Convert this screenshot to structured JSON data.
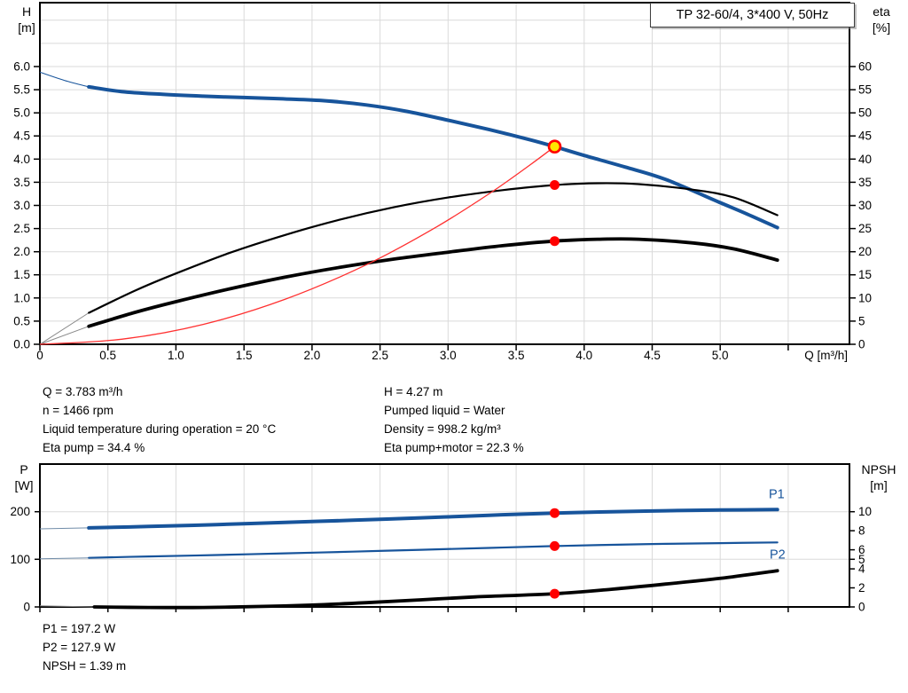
{
  "title_box": {
    "label": "TP 32-60/4, 3*400 V, 50Hz"
  },
  "colors": {
    "curve_blue": "#17549B",
    "curve_black": "#000000",
    "curve_red": "#FF3030",
    "marker_red": "#FF0000",
    "duty_fill": "#FFE800",
    "grid": "#DADADA",
    "axis": "#000000",
    "lead_gray": "#888888",
    "lead_blue": "#708CA8",
    "text": "#000000"
  },
  "info_blocks": {
    "top_left": [
      "Q = 3.783 m³/h",
      "n = 1466 rpm",
      "Liquid temperature during operation = 20 °C",
      "Eta pump = 34.4 %"
    ],
    "top_right": [
      "H = 4.27 m",
      "Pumped liquid = Water",
      "Density = 998.2 kg/m³",
      "Eta pump+motor = 22.3 %"
    ],
    "bottom": [
      "P1 = 197.2 W",
      "P2 = 127.9 W",
      "NPSH = 1.39 m"
    ]
  },
  "chart_data": [
    {
      "id": "hq",
      "type": "line",
      "title": "TP 32-60/4, 3*400 V, 50Hz",
      "x_axis": {
        "label": "Q [m³/h]",
        "min": 0,
        "max": 5.95,
        "ticks": [
          {
            "v": 0,
            "label": "0"
          },
          {
            "v": 0.5,
            "label": "0.5"
          },
          {
            "v": 1,
            "label": "1.0"
          },
          {
            "v": 1.5,
            "label": "1.5"
          },
          {
            "v": 2,
            "label": "2.0"
          },
          {
            "v": 2.5,
            "label": "2.5"
          },
          {
            "v": 3,
            "label": "3.0"
          },
          {
            "v": 3.5,
            "label": "3.5"
          },
          {
            "v": 4,
            "label": "4.0"
          },
          {
            "v": 4.5,
            "label": "4.5"
          },
          {
            "v": 5,
            "label": "5.0"
          },
          {
            "v": 5.5,
            "label": ""
          }
        ],
        "grid": [
          0.5,
          1,
          1.5,
          2,
          2.5,
          3,
          3.5,
          4,
          4.5,
          5,
          5.5
        ]
      },
      "y_left": {
        "label_lines": [
          "H",
          "[m]"
        ],
        "min": 0,
        "max": 7.38,
        "ticks": [
          {
            "v": 0,
            "label": "0.0"
          },
          {
            "v": 0.5,
            "label": "0.5"
          },
          {
            "v": 1,
            "label": "1.0"
          },
          {
            "v": 1.5,
            "label": "1.5"
          },
          {
            "v": 2,
            "label": "2.0"
          },
          {
            "v": 2.5,
            "label": "2.5"
          },
          {
            "v": 3,
            "label": "3.0"
          },
          {
            "v": 3.5,
            "label": "3.5"
          },
          {
            "v": 4,
            "label": "4.0"
          },
          {
            "v": 4.5,
            "label": "4.5"
          },
          {
            "v": 5,
            "label": "5.0"
          },
          {
            "v": 5.5,
            "label": "5.5"
          },
          {
            "v": 6,
            "label": "6.0"
          }
        ],
        "grid": [
          0.5,
          1,
          1.5,
          2,
          2.5,
          3,
          3.5,
          4,
          4.5,
          5,
          5.5,
          6,
          6.5,
          7
        ]
      },
      "y_right": {
        "label_lines": [
          "eta",
          "[%]"
        ],
        "min": 0,
        "max": 73.8,
        "ticks": [
          {
            "v": 0,
            "label": "0"
          },
          {
            "v": 5,
            "label": "5"
          },
          {
            "v": 10,
            "label": "10"
          },
          {
            "v": 15,
            "label": "15"
          },
          {
            "v": 20,
            "label": "20"
          },
          {
            "v": 25,
            "label": "25"
          },
          {
            "v": 30,
            "label": "30"
          },
          {
            "v": 35,
            "label": "35"
          },
          {
            "v": 40,
            "label": "40"
          },
          {
            "v": 45,
            "label": "45"
          },
          {
            "v": 50,
            "label": "50"
          },
          {
            "v": 55,
            "label": "55"
          },
          {
            "v": 60,
            "label": "60"
          }
        ]
      },
      "series": [
        {
          "id": "pump_curve",
          "name": "H-Q pump curve",
          "axis": "left",
          "color": "#17549B",
          "width": 4,
          "thin_to": 0.36,
          "lead_color": "#17549B",
          "points": [
            [
              0,
              5.88
            ],
            [
              0.18,
              5.7
            ],
            [
              0.36,
              5.56
            ],
            [
              0.6,
              5.46
            ],
            [
              0.9,
              5.4
            ],
            [
              1.2,
              5.36
            ],
            [
              1.5,
              5.33
            ],
            [
              1.8,
              5.3
            ],
            [
              2.1,
              5.26
            ],
            [
              2.4,
              5.17
            ],
            [
              2.7,
              5.03
            ],
            [
              3.0,
              4.84
            ],
            [
              3.3,
              4.64
            ],
            [
              3.6,
              4.42
            ],
            [
              3.783,
              4.27
            ],
            [
              4.0,
              4.08
            ],
            [
              4.3,
              3.83
            ],
            [
              4.6,
              3.56
            ],
            [
              5.0,
              3.06
            ],
            [
              5.2,
              2.81
            ],
            [
              5.42,
              2.52
            ]
          ]
        },
        {
          "id": "eta_pump",
          "name": "Eta pump",
          "axis": "right",
          "color": "#000000",
          "width": 2.2,
          "thin_to": 0.36,
          "lead_color": "#888888",
          "points": [
            [
              0,
              0
            ],
            [
              0.36,
              6.8
            ],
            [
              0.7,
              11.6
            ],
            [
              1.0,
              15.3
            ],
            [
              1.4,
              19.8
            ],
            [
              1.8,
              23.6
            ],
            [
              2.2,
              26.9
            ],
            [
              2.6,
              29.6
            ],
            [
              3.0,
              31.7
            ],
            [
              3.4,
              33.3
            ],
            [
              3.783,
              34.4
            ],
            [
              4.1,
              34.8
            ],
            [
              4.4,
              34.6
            ],
            [
              4.8,
              33.4
            ],
            [
              5.1,
              31.7
            ],
            [
              5.42,
              27.9
            ]
          ]
        },
        {
          "id": "eta_pump_motor",
          "name": "Eta pump+motor",
          "axis": "right",
          "color": "#000000",
          "width": 3.8,
          "thin_to": 0.36,
          "lead_color": "#888888",
          "points": [
            [
              0,
              0
            ],
            [
              0.36,
              3.9
            ],
            [
              0.7,
              6.9
            ],
            [
              1.0,
              9.2
            ],
            [
              1.4,
              12.0
            ],
            [
              1.8,
              14.5
            ],
            [
              2.2,
              16.6
            ],
            [
              2.6,
              18.4
            ],
            [
              3.0,
              19.9
            ],
            [
              3.4,
              21.3
            ],
            [
              3.783,
              22.3
            ],
            [
              4.1,
              22.7
            ],
            [
              4.4,
              22.7
            ],
            [
              4.8,
              21.9
            ],
            [
              5.1,
              20.6
            ],
            [
              5.42,
              18.2
            ]
          ]
        },
        {
          "id": "system_curve",
          "name": "System curve",
          "axis": "left",
          "color": "#FF3030",
          "width": 1.3,
          "points": [
            [
              0,
              0
            ],
            [
              0.6,
              0.11
            ],
            [
              1.2,
              0.43
            ],
            [
              1.8,
              0.97
            ],
            [
              2.4,
              1.72
            ],
            [
              2.9,
              2.51
            ],
            [
              3.3,
              3.25
            ],
            [
              3.6,
              3.87
            ],
            [
              3.783,
              4.27
            ]
          ]
        }
      ],
      "markers": [
        {
          "x": 3.783,
          "y": 34.4,
          "axis": "right",
          "style": "dot",
          "name": "eta-pump-operating-dot"
        },
        {
          "x": 3.783,
          "y": 22.3,
          "axis": "right",
          "style": "dot",
          "name": "eta-pump-motor-operating-dot"
        },
        {
          "x": 3.783,
          "y": 4.27,
          "axis": "left",
          "style": "duty",
          "name": "duty-point-marker"
        }
      ]
    },
    {
      "id": "pn",
      "type": "line",
      "title": "",
      "x_axis": {
        "label": "",
        "min": 0,
        "max": 5.95,
        "ticks": [
          {
            "v": 0,
            "label": ""
          },
          {
            "v": 0.5,
            "label": ""
          },
          {
            "v": 1,
            "label": ""
          },
          {
            "v": 1.5,
            "label": ""
          },
          {
            "v": 2,
            "label": ""
          },
          {
            "v": 2.5,
            "label": ""
          },
          {
            "v": 3,
            "label": ""
          },
          {
            "v": 3.5,
            "label": ""
          },
          {
            "v": 4,
            "label": ""
          },
          {
            "v": 4.5,
            "label": ""
          },
          {
            "v": 5,
            "label": ""
          },
          {
            "v": 5.5,
            "label": ""
          }
        ],
        "grid": [
          0.5,
          1,
          1.5,
          2,
          2.5,
          3,
          3.5,
          4,
          4.5,
          5,
          5.5
        ]
      },
      "y_left": {
        "label_lines": [
          "P",
          "[W]"
        ],
        "min": 0,
        "max": 300,
        "ticks": [
          {
            "v": 0,
            "label": "0"
          },
          {
            "v": 100,
            "label": "100"
          },
          {
            "v": 200,
            "label": "200"
          }
        ],
        "grid": [
          100,
          200
        ]
      },
      "y_right": {
        "label_lines": [
          "NPSH",
          "[m]"
        ],
        "min": 0,
        "max": 15,
        "ticks": [
          {
            "v": 0,
            "label": "0"
          },
          {
            "v": 2,
            "label": "2"
          },
          {
            "v": 4,
            "label": "4"
          },
          {
            "v": 5,
            "label": "5"
          },
          {
            "v": 6,
            "label": "6"
          },
          {
            "v": 8,
            "label": "8"
          },
          {
            "v": 10,
            "label": "10"
          }
        ]
      },
      "series": [
        {
          "id": "p1",
          "name": "P1 input power",
          "label": "P1",
          "label_dx": 8,
          "label_dy": -13,
          "axis": "left",
          "color": "#17549B",
          "width": 4,
          "thin_to": 0.36,
          "lead_color": "#708CA8",
          "points": [
            [
              0,
              164
            ],
            [
              0.36,
              166
            ],
            [
              0.8,
              169
            ],
            [
              1.3,
              173
            ],
            [
              1.8,
              177.5
            ],
            [
              2.3,
              182
            ],
            [
              2.8,
              187
            ],
            [
              3.3,
              192.5
            ],
            [
              3.783,
              197.2
            ],
            [
              4.2,
              200
            ],
            [
              4.6,
              202
            ],
            [
              5.0,
              203.5
            ],
            [
              5.42,
              204.5
            ]
          ]
        },
        {
          "id": "p2",
          "name": "P2 shaft power",
          "label": "P2",
          "label_dx": 9,
          "label_dy": 18,
          "axis": "left",
          "color": "#17549B",
          "width": 2.2,
          "thin_to": 0.36,
          "lead_color": "#708CA8",
          "points": [
            [
              0,
              101
            ],
            [
              0.36,
              103
            ],
            [
              0.8,
              106
            ],
            [
              1.3,
              109
            ],
            [
              1.8,
              112.5
            ],
            [
              2.3,
              116
            ],
            [
              2.8,
              120
            ],
            [
              3.3,
              124
            ],
            [
              3.783,
              127.9
            ],
            [
              4.2,
              130.5
            ],
            [
              4.6,
              132.5
            ],
            [
              5.0,
              134
            ],
            [
              5.42,
              135.5
            ]
          ]
        },
        {
          "id": "npsh",
          "name": "NPSH",
          "axis": "right",
          "color": "#000000",
          "width": 3.8,
          "thin_to": 0.36,
          "lead_color": "#888888",
          "points": [
            [
              0,
              0.12
            ],
            [
              0.4,
              0.0
            ],
            [
              0.8,
              -0.06
            ],
            [
              1.2,
              -0.06
            ],
            [
              1.6,
              0.05
            ],
            [
              2.0,
              0.2
            ],
            [
              2.4,
              0.45
            ],
            [
              2.8,
              0.75
            ],
            [
              3.2,
              1.05
            ],
            [
              3.783,
              1.39
            ],
            [
              4.2,
              1.85
            ],
            [
              4.6,
              2.4
            ],
            [
              5.0,
              3.0
            ],
            [
              5.42,
              3.8
            ]
          ]
        }
      ],
      "markers": [
        {
          "x": 3.783,
          "y": 197.2,
          "axis": "left",
          "style": "dot",
          "name": "p1-operating-dot"
        },
        {
          "x": 3.783,
          "y": 127.9,
          "axis": "left",
          "style": "dot",
          "name": "p2-operating-dot"
        },
        {
          "x": 3.783,
          "y": 1.39,
          "axis": "right",
          "style": "dot",
          "name": "npsh-operating-dot"
        }
      ]
    }
  ]
}
